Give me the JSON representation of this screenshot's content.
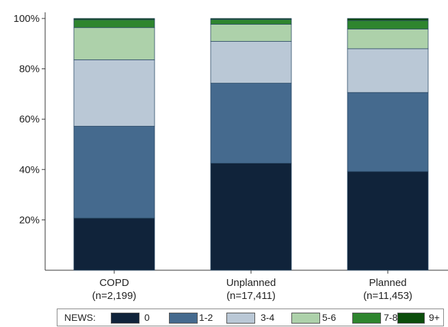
{
  "chart_data": {
    "type": "bar",
    "stacked": true,
    "categories": [
      "COPD",
      "Unplanned",
      "Planned"
    ],
    "category_sublabels": [
      "(n=2,199)",
      "(n=17,411)",
      "(n=11,453)"
    ],
    "series": [
      {
        "name": "0",
        "color": "#10233a",
        "values": [
          20.7,
          42.5,
          39.2
        ]
      },
      {
        "name": "1-2",
        "color": "#456a8e",
        "values": [
          36.5,
          31.8,
          31.4
        ]
      },
      {
        "name": "3-4",
        "color": "#bac8d6",
        "values": [
          26.4,
          16.6,
          17.4
        ]
      },
      {
        "name": "5-6",
        "color": "#add1aa",
        "values": [
          12.8,
          6.8,
          7.8
        ]
      },
      {
        "name": "7-8",
        "color": "#2e852e",
        "values": [
          3.1,
          1.9,
          3.4
        ]
      },
      {
        "name": "9+",
        "color": "#0b4d0b",
        "values": [
          0.5,
          0.4,
          0.8
        ]
      }
    ],
    "ylim": [
      0,
      100
    ],
    "yticks": [
      20,
      40,
      60,
      80,
      100
    ],
    "ytick_labels": [
      "20%",
      "40%",
      "60%",
      "80%",
      "100%"
    ],
    "legend_title": "NEWS:",
    "legend_position": "bottom",
    "grid": false
  }
}
